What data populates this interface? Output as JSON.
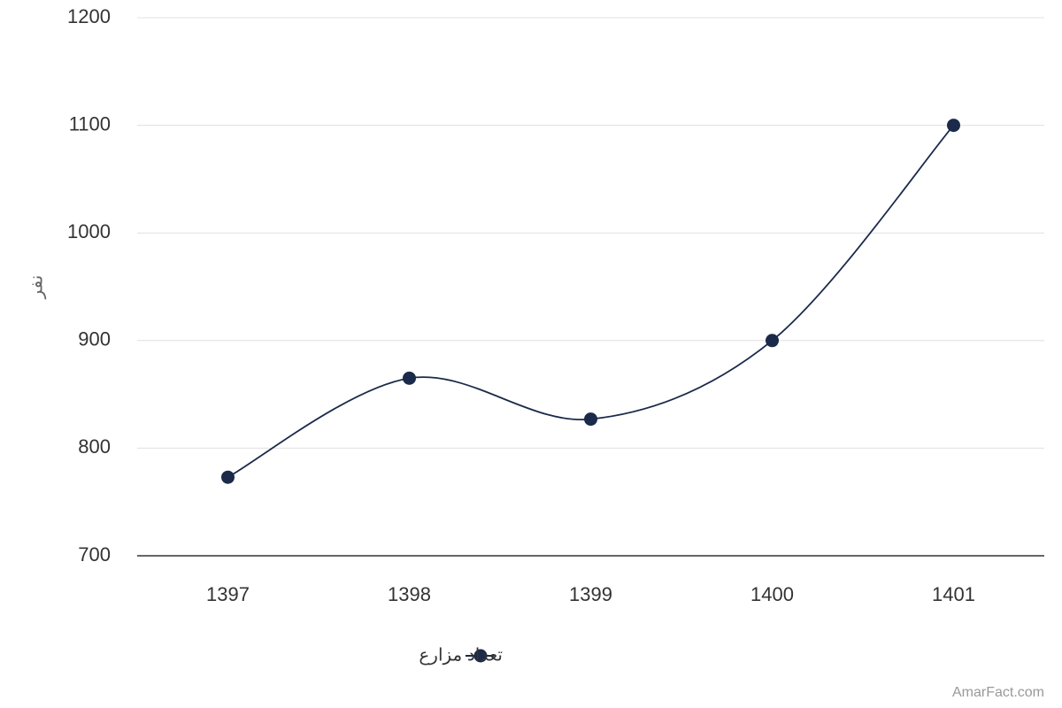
{
  "chart_data": {
    "type": "line",
    "y_axis_label": "نفر",
    "categories": [
      "1397",
      "1398",
      "1399",
      "1400",
      "1401"
    ],
    "series": [
      {
        "name": "تعداد مزارع",
        "color": "#1b2a4a",
        "values": [
          773,
          865,
          827,
          900,
          1100
        ]
      }
    ],
    "ylim": [
      700,
      1200
    ],
    "yticks": [
      700,
      800,
      900,
      1000,
      1100,
      1200
    ],
    "grid": true,
    "smooth": true,
    "legend": "bottom",
    "credit": "AmarFact.com"
  }
}
